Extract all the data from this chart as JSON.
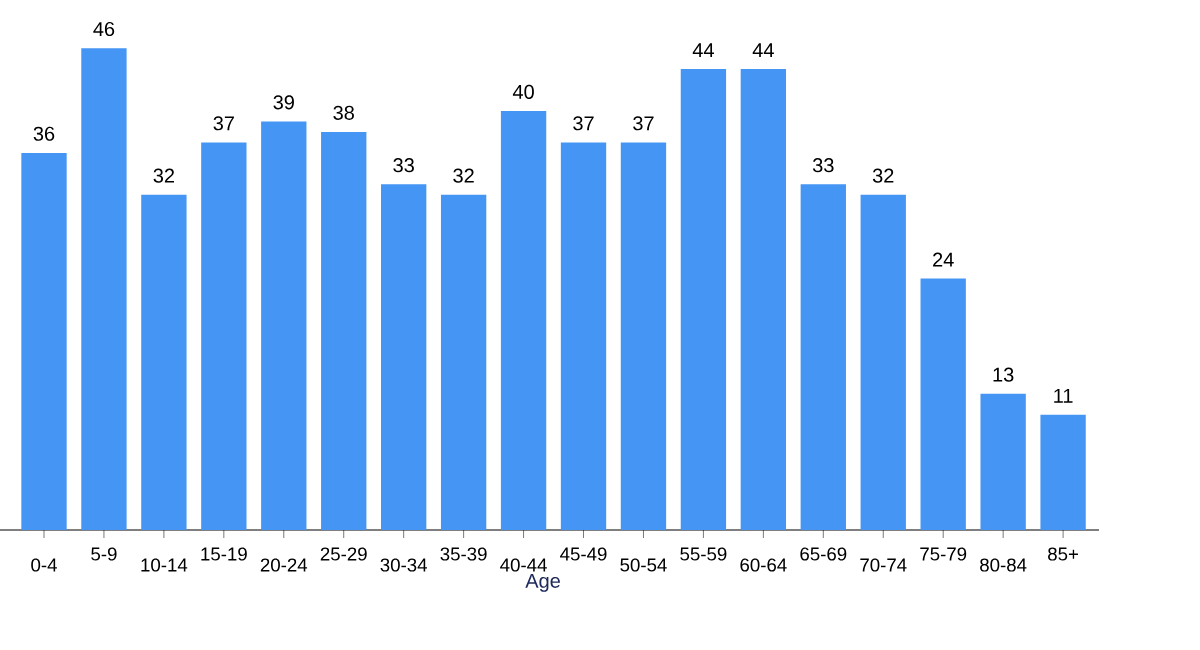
{
  "chart_data": {
    "type": "bar",
    "xlabel": "Age",
    "categories": [
      "0-4",
      "5-9",
      "10-14",
      "15-19",
      "20-24",
      "25-29",
      "30-34",
      "35-39",
      "40-44",
      "45-49",
      "50-54",
      "55-59",
      "60-64",
      "65-69",
      "70-74",
      "75-79",
      "80-84",
      "85+"
    ],
    "values": [
      36,
      46,
      32,
      37,
      39,
      38,
      33,
      32,
      40,
      37,
      37,
      44,
      44,
      33,
      32,
      24,
      13,
      11
    ],
    "color": "#4595f4",
    "tick_labels": "x",
    "data_labels": true
  }
}
